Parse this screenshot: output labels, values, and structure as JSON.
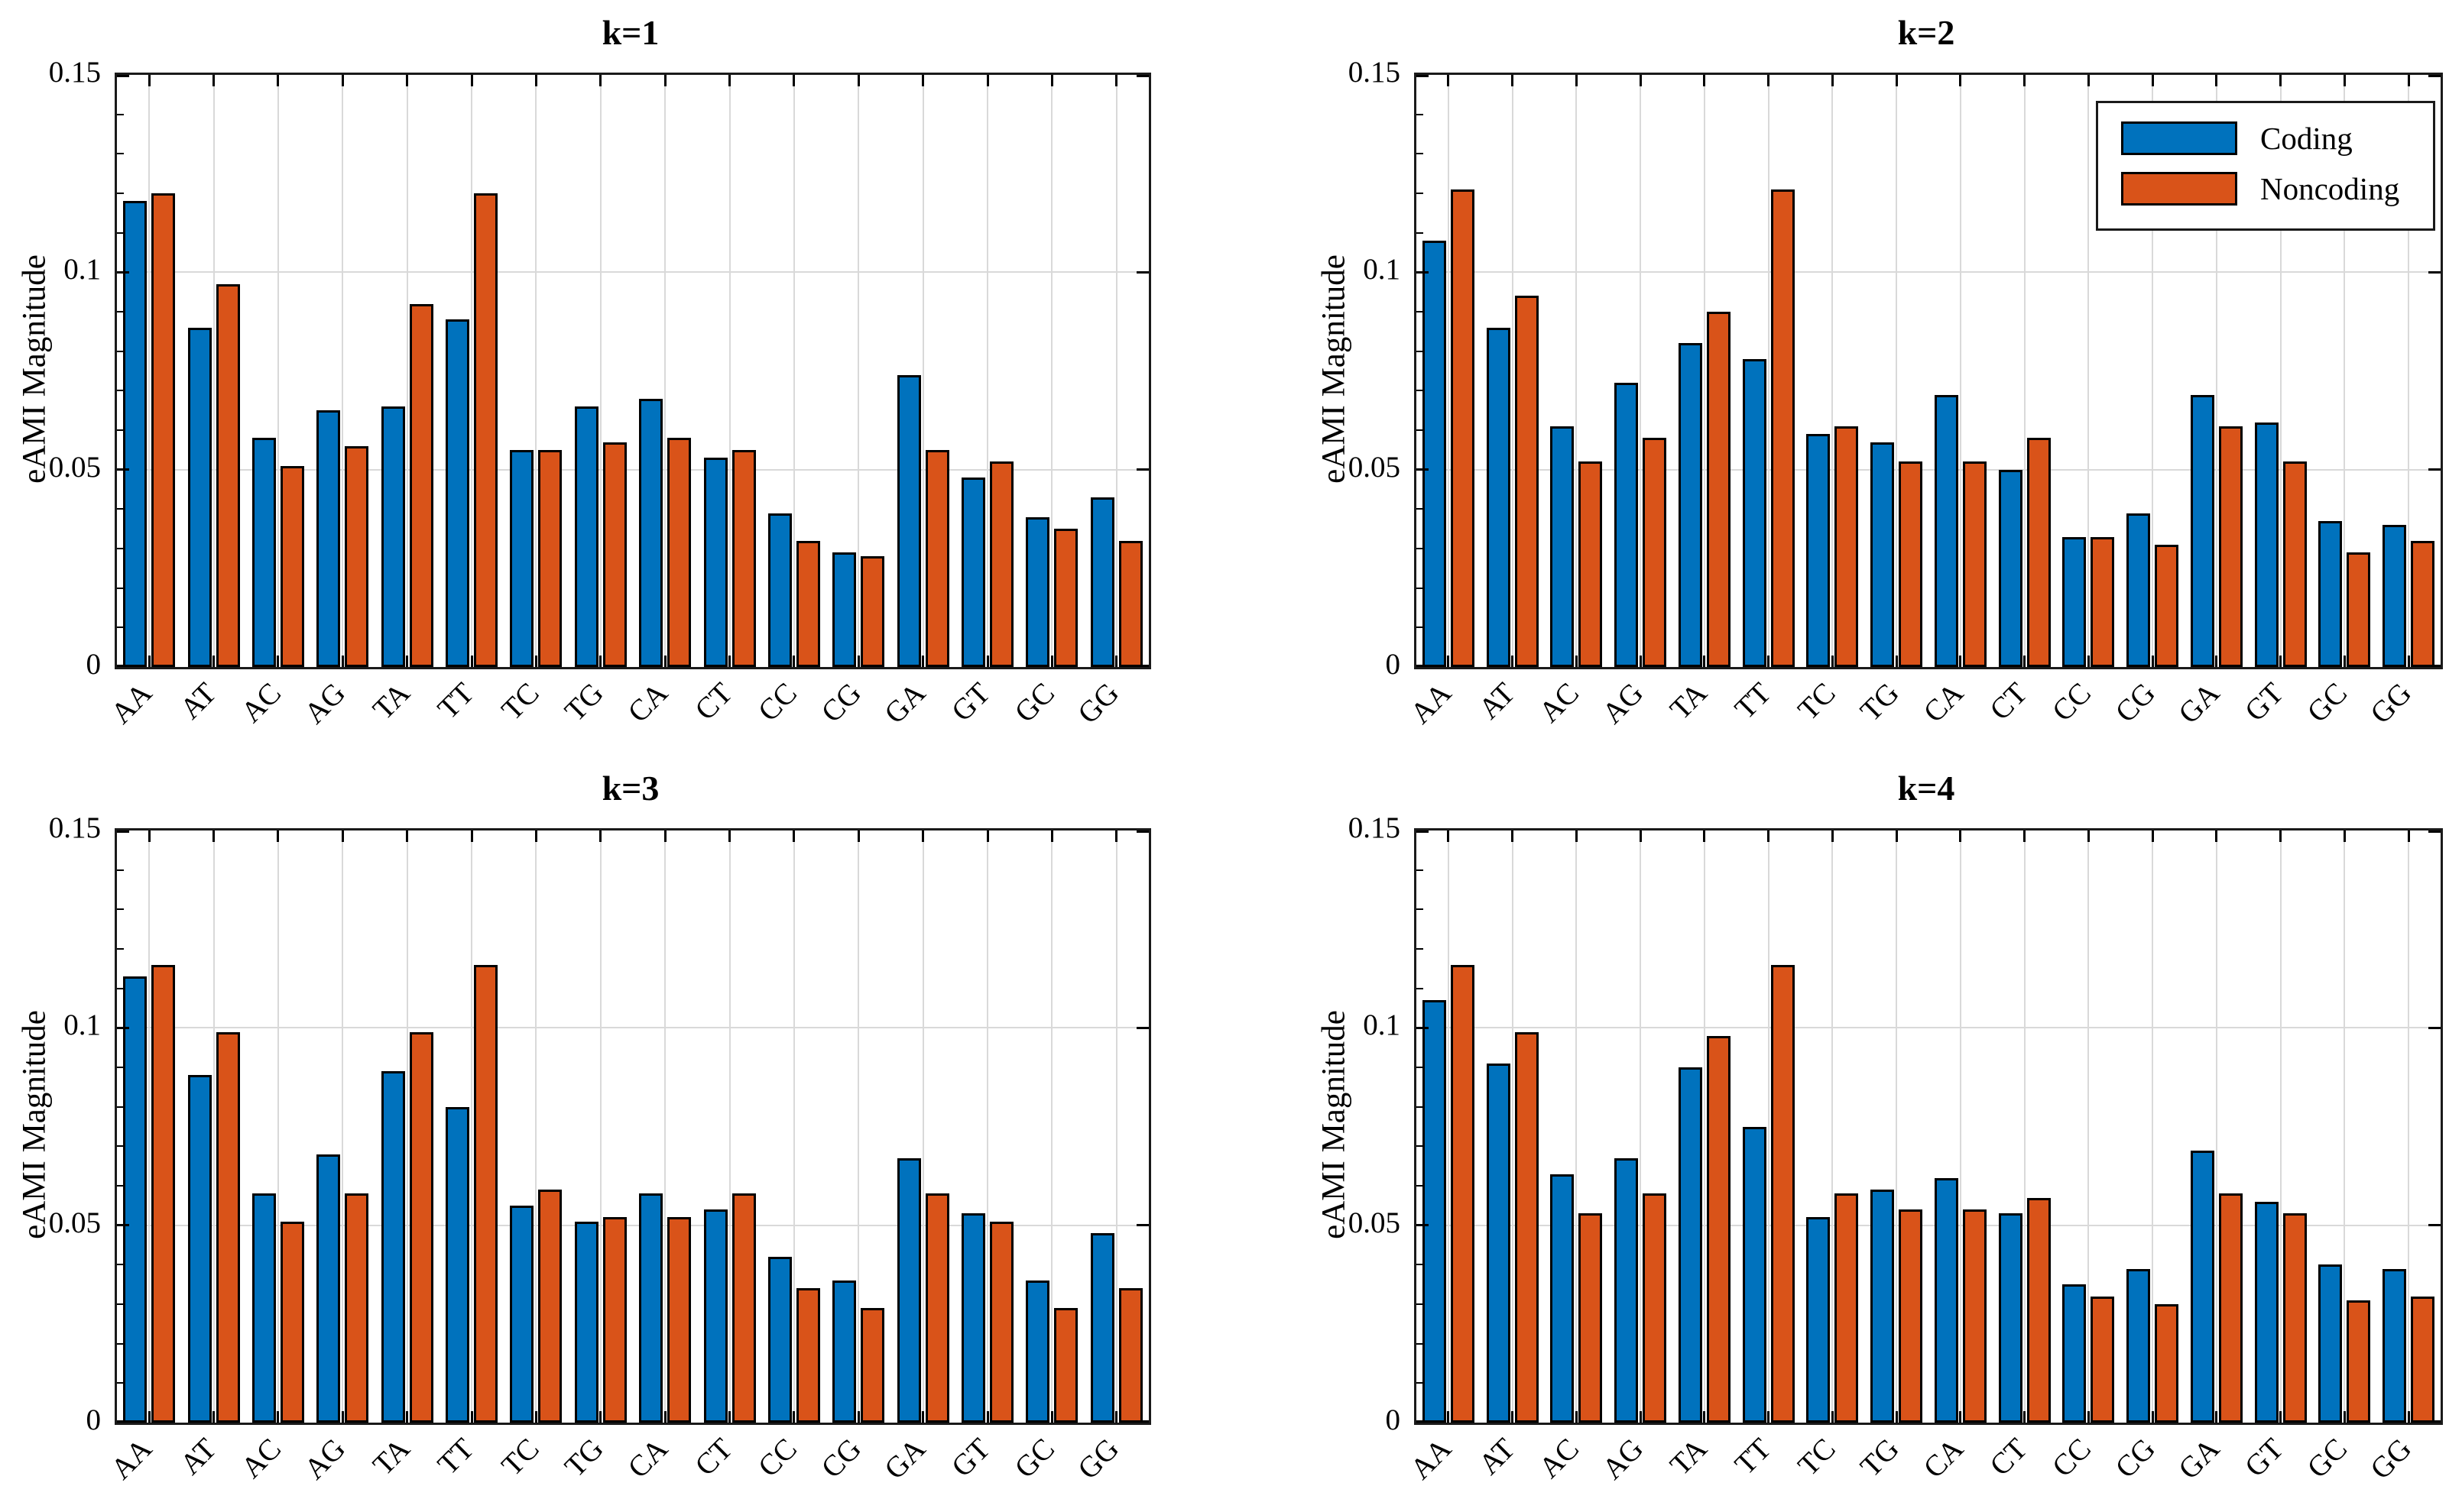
{
  "figure": {
    "ylabel": "eAMI Magnitude",
    "background": "#ffffff",
    "axis_color": "#000000",
    "grid_color": "#d9d9d9",
    "legend": {
      "position": "northeast",
      "items": [
        {
          "label": "Coding",
          "color": "#0072BD"
        },
        {
          "label": "Noncoding",
          "color": "#D95319"
        }
      ]
    }
  },
  "chart_data": [
    {
      "type": "bar",
      "title": "k=1",
      "xlabel": "",
      "ylabel": "eAMI Magnitude",
      "ylim": [
        0,
        0.15
      ],
      "yticks": [
        0,
        0.05,
        0.1,
        0.15
      ],
      "grid": true,
      "legend": false,
      "categories": [
        "AA",
        "AT",
        "AC",
        "AG",
        "TA",
        "TT",
        "TC",
        "TG",
        "CA",
        "CT",
        "CC",
        "CG",
        "GA",
        "GT",
        "GC",
        "GG"
      ],
      "series": [
        {
          "name": "Coding",
          "color": "#0072BD",
          "values": [
            0.118,
            0.086,
            0.058,
            0.065,
            0.066,
            0.088,
            0.055,
            0.066,
            0.068,
            0.053,
            0.039,
            0.029,
            0.074,
            0.048,
            0.038,
            0.043
          ]
        },
        {
          "name": "Noncoding",
          "color": "#D95319",
          "values": [
            0.12,
            0.097,
            0.051,
            0.056,
            0.092,
            0.12,
            0.055,
            0.057,
            0.058,
            0.055,
            0.032,
            0.028,
            0.055,
            0.052,
            0.035,
            0.032
          ]
        }
      ]
    },
    {
      "type": "bar",
      "title": "k=2",
      "xlabel": "",
      "ylabel": "eAMI Magnitude",
      "ylim": [
        0,
        0.15
      ],
      "yticks": [
        0,
        0.05,
        0.1,
        0.15
      ],
      "grid": true,
      "legend": true,
      "categories": [
        "AA",
        "AT",
        "AC",
        "AG",
        "TA",
        "TT",
        "TC",
        "TG",
        "CA",
        "CT",
        "CC",
        "CG",
        "GA",
        "GT",
        "GC",
        "GG"
      ],
      "series": [
        {
          "name": "Coding",
          "color": "#0072BD",
          "values": [
            0.108,
            0.086,
            0.061,
            0.072,
            0.082,
            0.078,
            0.059,
            0.057,
            0.069,
            0.05,
            0.033,
            0.039,
            0.069,
            0.062,
            0.037,
            0.036
          ]
        },
        {
          "name": "Noncoding",
          "color": "#D95319",
          "values": [
            0.121,
            0.094,
            0.052,
            0.058,
            0.09,
            0.121,
            0.061,
            0.052,
            0.052,
            0.058,
            0.033,
            0.031,
            0.061,
            0.052,
            0.029,
            0.032
          ]
        }
      ]
    },
    {
      "type": "bar",
      "title": "k=3",
      "xlabel": "",
      "ylabel": "eAMI Magnitude",
      "ylim": [
        0,
        0.15
      ],
      "yticks": [
        0,
        0.05,
        0.1,
        0.15
      ],
      "grid": true,
      "legend": false,
      "categories": [
        "AA",
        "AT",
        "AC",
        "AG",
        "TA",
        "TT",
        "TC",
        "TG",
        "CA",
        "CT",
        "CC",
        "CG",
        "GA",
        "GT",
        "GC",
        "GG"
      ],
      "series": [
        {
          "name": "Coding",
          "color": "#0072BD",
          "values": [
            0.113,
            0.088,
            0.058,
            0.068,
            0.089,
            0.08,
            0.055,
            0.051,
            0.058,
            0.054,
            0.042,
            0.036,
            0.067,
            0.053,
            0.036,
            0.048
          ]
        },
        {
          "name": "Noncoding",
          "color": "#D95319",
          "values": [
            0.116,
            0.099,
            0.051,
            0.058,
            0.099,
            0.116,
            0.059,
            0.052,
            0.052,
            0.058,
            0.034,
            0.029,
            0.058,
            0.051,
            0.029,
            0.034
          ]
        }
      ]
    },
    {
      "type": "bar",
      "title": "k=4",
      "xlabel": "",
      "ylabel": "eAMI Magnitude",
      "ylim": [
        0,
        0.15
      ],
      "yticks": [
        0,
        0.05,
        0.1,
        0.15
      ],
      "grid": true,
      "legend": false,
      "categories": [
        "AA",
        "AT",
        "AC",
        "AG",
        "TA",
        "TT",
        "TC",
        "TG",
        "CA",
        "CT",
        "CC",
        "CG",
        "GA",
        "GT",
        "GC",
        "GG"
      ],
      "series": [
        {
          "name": "Coding",
          "color": "#0072BD",
          "values": [
            0.107,
            0.091,
            0.063,
            0.067,
            0.09,
            0.075,
            0.052,
            0.059,
            0.062,
            0.053,
            0.035,
            0.039,
            0.069,
            0.056,
            0.04,
            0.039
          ]
        },
        {
          "name": "Noncoding",
          "color": "#D95319",
          "values": [
            0.116,
            0.099,
            0.053,
            0.058,
            0.098,
            0.116,
            0.058,
            0.054,
            0.054,
            0.057,
            0.032,
            0.03,
            0.058,
            0.053,
            0.031,
            0.032
          ]
        }
      ]
    }
  ]
}
